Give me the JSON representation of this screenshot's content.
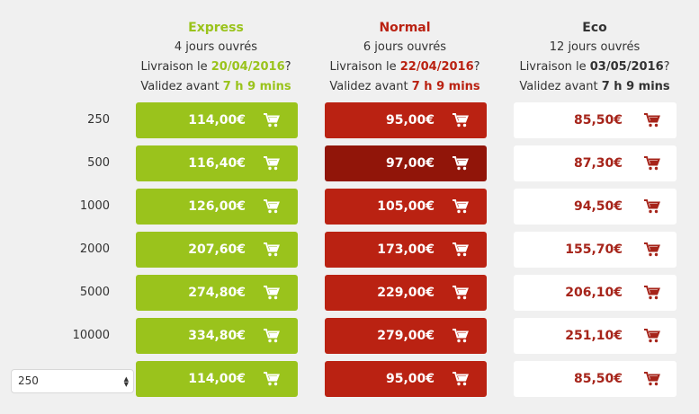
{
  "colors": {
    "express": "#9ac31c",
    "normal": "#ba2212",
    "normal_hover": "#911509",
    "eco_text": "#a6241a"
  },
  "columns": [
    {
      "name": "Express",
      "days": "4 jours ouvrés",
      "delivery_prefix": "Livraison le ",
      "date": "20/04/2016",
      "delivery_suffix": "?",
      "validate_prefix": "Validez avant ",
      "time": "7 h 9 mins"
    },
    {
      "name": "Normal",
      "days": "6 jours ouvrés",
      "delivery_prefix": "Livraison le ",
      "date": "22/04/2016",
      "delivery_suffix": "?",
      "validate_prefix": "Validez avant ",
      "time": "7 h 9 mins"
    },
    {
      "name": "Eco",
      "days": "12 jours ouvrés",
      "delivery_prefix": "Livraison le ",
      "date": "03/05/2016",
      "delivery_suffix": "?",
      "validate_prefix": "Validez avant ",
      "time": "7 h 9 mins"
    }
  ],
  "rows": [
    {
      "qty": "250",
      "express": "114,00€",
      "normal": "95,00€",
      "eco": "85,50€"
    },
    {
      "qty": "500",
      "express": "116,40€",
      "normal": "97,00€",
      "eco": "87,30€"
    },
    {
      "qty": "1000",
      "express": "126,00€",
      "normal": "105,00€",
      "eco": "94,50€"
    },
    {
      "qty": "2000",
      "express": "207,60€",
      "normal": "173,00€",
      "eco": "155,70€"
    },
    {
      "qty": "5000",
      "express": "274,80€",
      "normal": "229,00€",
      "eco": "206,10€"
    },
    {
      "qty": "10000",
      "express": "334,80€",
      "normal": "279,00€",
      "eco": "251,10€"
    }
  ],
  "custom_row": {
    "selected_qty": "250",
    "express": "114,00€",
    "normal": "95,00€",
    "eco": "85,50€"
  },
  "icons": {
    "cart": "cart-icon",
    "select_arrows": "up-down-arrows-icon"
  }
}
